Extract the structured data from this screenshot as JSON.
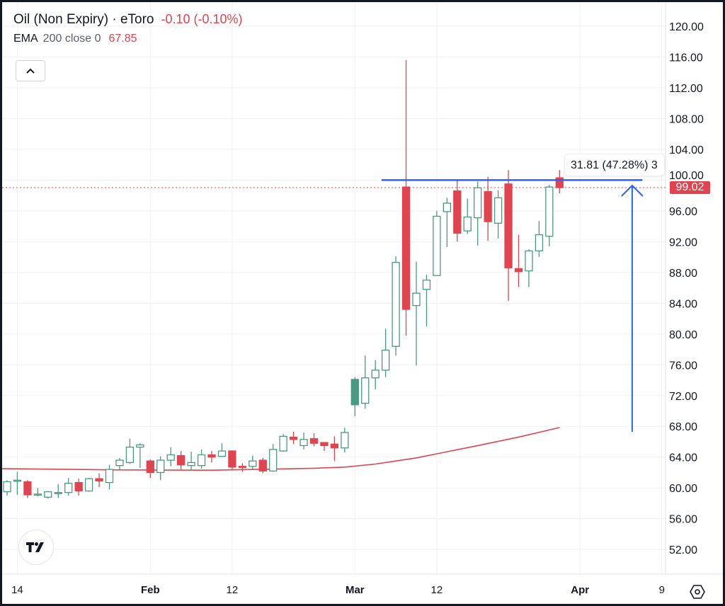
{
  "header": {
    "symbol": "Oil (Non Expiry) · eToro",
    "change": "-0.10 (-0.10%)",
    "indicator_name": "EMA",
    "indicator_params": "200 close 0",
    "indicator_value": "67.85"
  },
  "measure_label": "31.81 (47.28%) 3",
  "last_price_label": "99.02",
  "colors": {
    "up": "#4a9a82",
    "down": "#e0444e",
    "ema": "#e0444e",
    "drawing": "#2962ff",
    "grid": "#f0f1f4"
  },
  "chart_data": {
    "type": "candlestick",
    "title": "Oil (Non Expiry) · eToro",
    "ylim": [
      50,
      122
    ],
    "y_ticks": [
      "120.00",
      "116.00",
      "112.00",
      "108.00",
      "104.00",
      "100.00",
      "96.00",
      "92.00",
      "88.00",
      "84.00",
      "80.00",
      "76.00",
      "72.00",
      "68.00",
      "64.00",
      "60.00",
      "56.00",
      "52.00"
    ],
    "x_ticks": [
      {
        "label": "14",
        "index": 1,
        "bold": false
      },
      {
        "label": "Feb",
        "index": 14,
        "bold": true
      },
      {
        "label": "12",
        "index": 22,
        "bold": false
      },
      {
        "label": "Mar",
        "index": 34,
        "bold": true
      },
      {
        "label": "12",
        "index": 42,
        "bold": false
      },
      {
        "label": "Apr",
        "index": 56,
        "bold": true
      },
      {
        "label": "9",
        "index": 64,
        "bold": false
      }
    ],
    "candles_ohlc": [
      [
        59.5,
        61.0,
        59.0,
        60.8
      ],
      [
        60.9,
        62.1,
        59.1,
        61.0
      ],
      [
        60.8,
        61.0,
        58.7,
        59.1
      ],
      [
        59.2,
        60.0,
        58.9,
        59.2
      ],
      [
        58.8,
        59.6,
        58.6,
        59.5
      ],
      [
        59.3,
        60.5,
        58.7,
        59.4
      ],
      [
        59.4,
        61.3,
        59.0,
        60.6
      ],
      [
        60.7,
        61.2,
        59.0,
        59.6
      ],
      [
        59.6,
        61.3,
        59.5,
        61.2
      ],
      [
        61.2,
        61.9,
        60.1,
        60.9
      ],
      [
        60.7,
        63.0,
        59.8,
        62.4
      ],
      [
        62.9,
        63.9,
        62.4,
        63.6
      ],
      [
        63.3,
        66.4,
        63.1,
        65.3
      ],
      [
        65.3,
        65.8,
        62.6,
        65.6
      ],
      [
        63.5,
        63.7,
        61.3,
        62.0
      ],
      [
        62.0,
        64.1,
        61.0,
        63.6
      ],
      [
        63.6,
        65.3,
        62.8,
        64.3
      ],
      [
        64.2,
        64.8,
        62.4,
        63.0
      ],
      [
        62.9,
        64.7,
        62.2,
        63.3
      ],
      [
        62.9,
        65.0,
        62.5,
        64.3
      ],
      [
        64.3,
        64.8,
        63.3,
        64.0
      ],
      [
        64.1,
        65.8,
        64.1,
        64.8
      ],
      [
        64.8,
        64.9,
        62.4,
        62.7
      ],
      [
        62.8,
        63.2,
        62.1,
        62.7
      ],
      [
        62.8,
        64.2,
        62.4,
        63.5
      ],
      [
        63.6,
        63.9,
        61.9,
        62.2
      ],
      [
        62.2,
        65.7,
        62.1,
        65.0
      ],
      [
        64.8,
        67.0,
        64.7,
        66.7
      ],
      [
        66.6,
        67.3,
        65.7,
        66.3
      ],
      [
        65.5,
        67.2,
        65.0,
        66.3
      ],
      [
        66.4,
        67.1,
        65.4,
        65.8
      ],
      [
        65.9,
        65.9,
        64.8,
        65.5
      ],
      [
        65.7,
        66.7,
        63.5,
        65.2
      ],
      [
        65.2,
        67.8,
        64.6,
        67.2
      ],
      [
        70.8,
        74.4,
        69.3,
        74.1
      ],
      [
        71.0,
        77.2,
        70.3,
        74.3
      ],
      [
        74.3,
        76.6,
        72.8,
        75.3
      ],
      [
        75.3,
        80.7,
        74.4,
        77.9
      ],
      [
        78.4,
        90.1,
        77.2,
        89.3
      ],
      [
        99.1,
        115.6,
        79.8,
        83.2
      ],
      [
        83.7,
        89.4,
        75.9,
        85.3
      ],
      [
        85.8,
        87.7,
        81.0,
        87.0
      ],
      [
        87.6,
        96.0,
        87.6,
        95.3
      ],
      [
        95.9,
        97.7,
        91.3,
        97.0
      ],
      [
        98.6,
        100.0,
        92.0,
        93.1
      ],
      [
        93.4,
        97.6,
        93.0,
        95.2
      ],
      [
        95.1,
        99.8,
        91.5,
        99.0
      ],
      [
        98.5,
        100.4,
        92.1,
        94.6
      ],
      [
        94.4,
        98.7,
        92.4,
        97.7
      ],
      [
        99.5,
        101.3,
        84.3,
        88.6
      ],
      [
        88.5,
        92.9,
        86.1,
        88.1
      ],
      [
        88.2,
        91.0,
        86.1,
        90.8
      ],
      [
        90.8,
        94.7,
        90.0,
        92.9
      ],
      [
        92.7,
        99.4,
        91.4,
        99.1
      ],
      [
        100.3,
        101.3,
        98.3,
        99.02
      ]
    ],
    "ema_200": [
      [
        0,
        62.5
      ],
      [
        10,
        62.35
      ],
      [
        20,
        62.3
      ],
      [
        30,
        62.55
      ],
      [
        33,
        62.7
      ],
      [
        36,
        63.1
      ],
      [
        38,
        63.5
      ],
      [
        40,
        63.9
      ],
      [
        43,
        64.7
      ],
      [
        46,
        65.5
      ],
      [
        50,
        66.6
      ],
      [
        54,
        67.85
      ]
    ],
    "last_price": 99.02,
    "drawings": {
      "horizontal_line": {
        "price": 100.0,
        "from_index": 36.6,
        "to_index": 62.1
      },
      "measure_arrow": {
        "index": 61.1,
        "from_price": 67.3,
        "to_price": 99.3
      }
    }
  }
}
